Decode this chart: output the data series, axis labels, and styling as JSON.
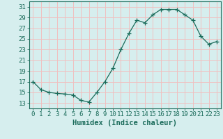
{
  "x": [
    0,
    1,
    2,
    3,
    4,
    5,
    6,
    7,
    8,
    9,
    10,
    11,
    12,
    13,
    14,
    15,
    16,
    17,
    18,
    19,
    20,
    21,
    22,
    23
  ],
  "y": [
    17,
    15.5,
    15,
    14.8,
    14.7,
    14.5,
    13.5,
    13.2,
    15,
    17,
    19.5,
    23,
    26,
    28.5,
    28,
    29.5,
    30.5,
    30.5,
    30.5,
    29.5,
    28.5,
    25.5,
    24,
    24.5
  ],
  "xlabel": "Humidex (Indice chaleur)",
  "xlim": [
    -0.5,
    23.5
  ],
  "ylim": [
    12,
    32
  ],
  "yticks": [
    13,
    15,
    17,
    19,
    21,
    23,
    25,
    27,
    29,
    31
  ],
  "xticks": [
    0,
    1,
    2,
    3,
    4,
    5,
    6,
    7,
    8,
    9,
    10,
    11,
    12,
    13,
    14,
    15,
    16,
    17,
    18,
    19,
    20,
    21,
    22,
    23
  ],
  "line_color": "#1a6b5a",
  "marker": "+",
  "marker_size": 4,
  "bg_color": "#d6eeee",
  "grid_color": "#f0c0c0",
  "label_fontsize": 7.5,
  "tick_fontsize": 6.5
}
